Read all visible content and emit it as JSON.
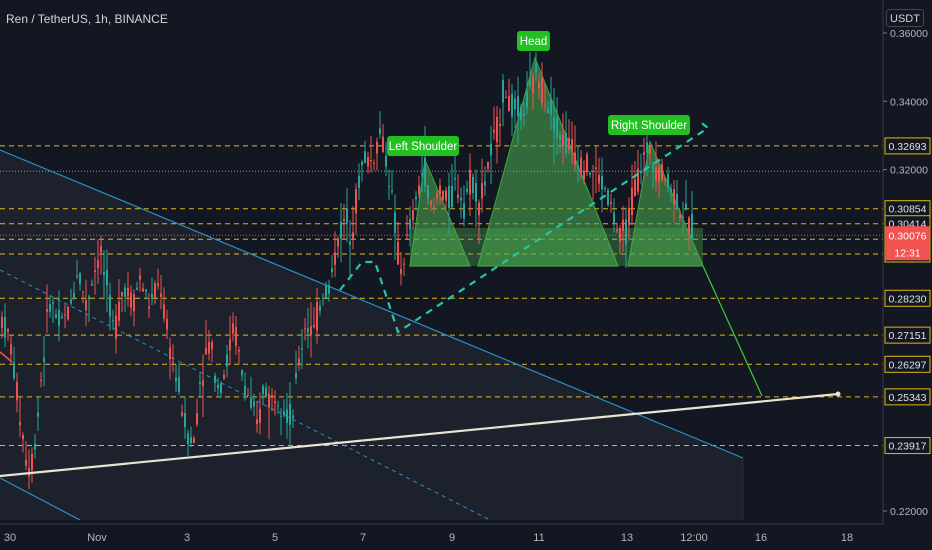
{
  "header": {
    "symbol": "Ren / TetherUS, 1h, BINANCE",
    "currency": "USDT"
  },
  "colors": {
    "background": "#131722",
    "up": "#26a69a",
    "down": "#ef5350",
    "level": "#e2b712",
    "pattern_fill": "#4caf50",
    "label_bg": "#22c021",
    "channel": "#2b8fc7",
    "trendline": "#e8e4d0",
    "current_price": "#f05350"
  },
  "chart_data": {
    "type": "candlestick",
    "symbol": "Ren / TetherUS",
    "interval": "1h",
    "exchange": "BINANCE",
    "ylim": [
      0.22,
      0.362
    ],
    "x_ticks": [
      "30",
      "Nov",
      "3",
      "5",
      "7",
      "9",
      "11",
      "13",
      "12:00",
      "16",
      "18"
    ],
    "y_ticks": [
      "0.36000",
      "0.34000",
      "0.32000",
      "0.22000"
    ],
    "price_levels": [
      "0.32693",
      "0.30854",
      "0.30414",
      "0.29960",
      "0.29527",
      "0.28230",
      "0.27151",
      "0.26297",
      "0.25343",
      "0.23917"
    ],
    "current_price": "0.30076",
    "countdown": "12:31",
    "annotations": [
      "Head",
      "Left Shoulder",
      "Right Shoulder"
    ],
    "price_path": [
      [
        0,
        0.278
      ],
      [
        10,
        0.27
      ],
      [
        20,
        0.248
      ],
      [
        28,
        0.232
      ],
      [
        34,
        0.237
      ],
      [
        42,
        0.262
      ],
      [
        50,
        0.282
      ],
      [
        60,
        0.274
      ],
      [
        70,
        0.279
      ],
      [
        78,
        0.292
      ],
      [
        86,
        0.28
      ],
      [
        92,
        0.288
      ],
      [
        100,
        0.296
      ],
      [
        108,
        0.284
      ],
      [
        114,
        0.272
      ],
      [
        124,
        0.287
      ],
      [
        132,
        0.281
      ],
      [
        140,
        0.288
      ],
      [
        150,
        0.28
      ],
      [
        160,
        0.287
      ],
      [
        168,
        0.27
      ],
      [
        178,
        0.257
      ],
      [
        186,
        0.244
      ],
      [
        194,
        0.24
      ],
      [
        200,
        0.258
      ],
      [
        210,
        0.27
      ],
      [
        218,
        0.257
      ],
      [
        226,
        0.262
      ],
      [
        234,
        0.275
      ],
      [
        242,
        0.26
      ],
      [
        250,
        0.252
      ],
      [
        258,
        0.243
      ],
      [
        264,
        0.258
      ],
      [
        270,
        0.252
      ],
      [
        278,
        0.255
      ],
      [
        286,
        0.25
      ],
      [
        292,
        0.246
      ],
      [
        298,
        0.262
      ],
      [
        306,
        0.276
      ],
      [
        314,
        0.272
      ],
      [
        322,
        0.284
      ],
      [
        330,
        0.286
      ],
      [
        338,
        0.3
      ],
      [
        346,
        0.306
      ],
      [
        352,
        0.302
      ],
      [
        358,
        0.315
      ],
      [
        364,
        0.324
      ],
      [
        372,
        0.322
      ],
      [
        380,
        0.331
      ],
      [
        388,
        0.321
      ],
      [
        396,
        0.301
      ],
      [
        400,
        0.289
      ],
      [
        408,
        0.3
      ],
      [
        416,
        0.31
      ],
      [
        424,
        0.322
      ],
      [
        432,
        0.306
      ],
      [
        440,
        0.315
      ],
      [
        448,
        0.31
      ],
      [
        456,
        0.316
      ],
      [
        464,
        0.311
      ],
      [
        472,
        0.318
      ],
      [
        480,
        0.31
      ],
      [
        488,
        0.321
      ],
      [
        496,
        0.33
      ],
      [
        504,
        0.344
      ],
      [
        512,
        0.338
      ],
      [
        520,
        0.336
      ],
      [
        528,
        0.34
      ],
      [
        536,
        0.348
      ],
      [
        542,
        0.344
      ],
      [
        550,
        0.339
      ],
      [
        560,
        0.33
      ],
      [
        570,
        0.327
      ],
      [
        580,
        0.323
      ],
      [
        590,
        0.32
      ],
      [
        598,
        0.318
      ],
      [
        606,
        0.314
      ],
      [
        614,
        0.306
      ],
      [
        620,
        0.299
      ],
      [
        628,
        0.304
      ],
      [
        634,
        0.314
      ],
      [
        642,
        0.322
      ],
      [
        650,
        0.326
      ],
      [
        658,
        0.32
      ],
      [
        666,
        0.318
      ],
      [
        674,
        0.313
      ],
      [
        682,
        0.308
      ],
      [
        690,
        0.303
      ]
    ]
  }
}
